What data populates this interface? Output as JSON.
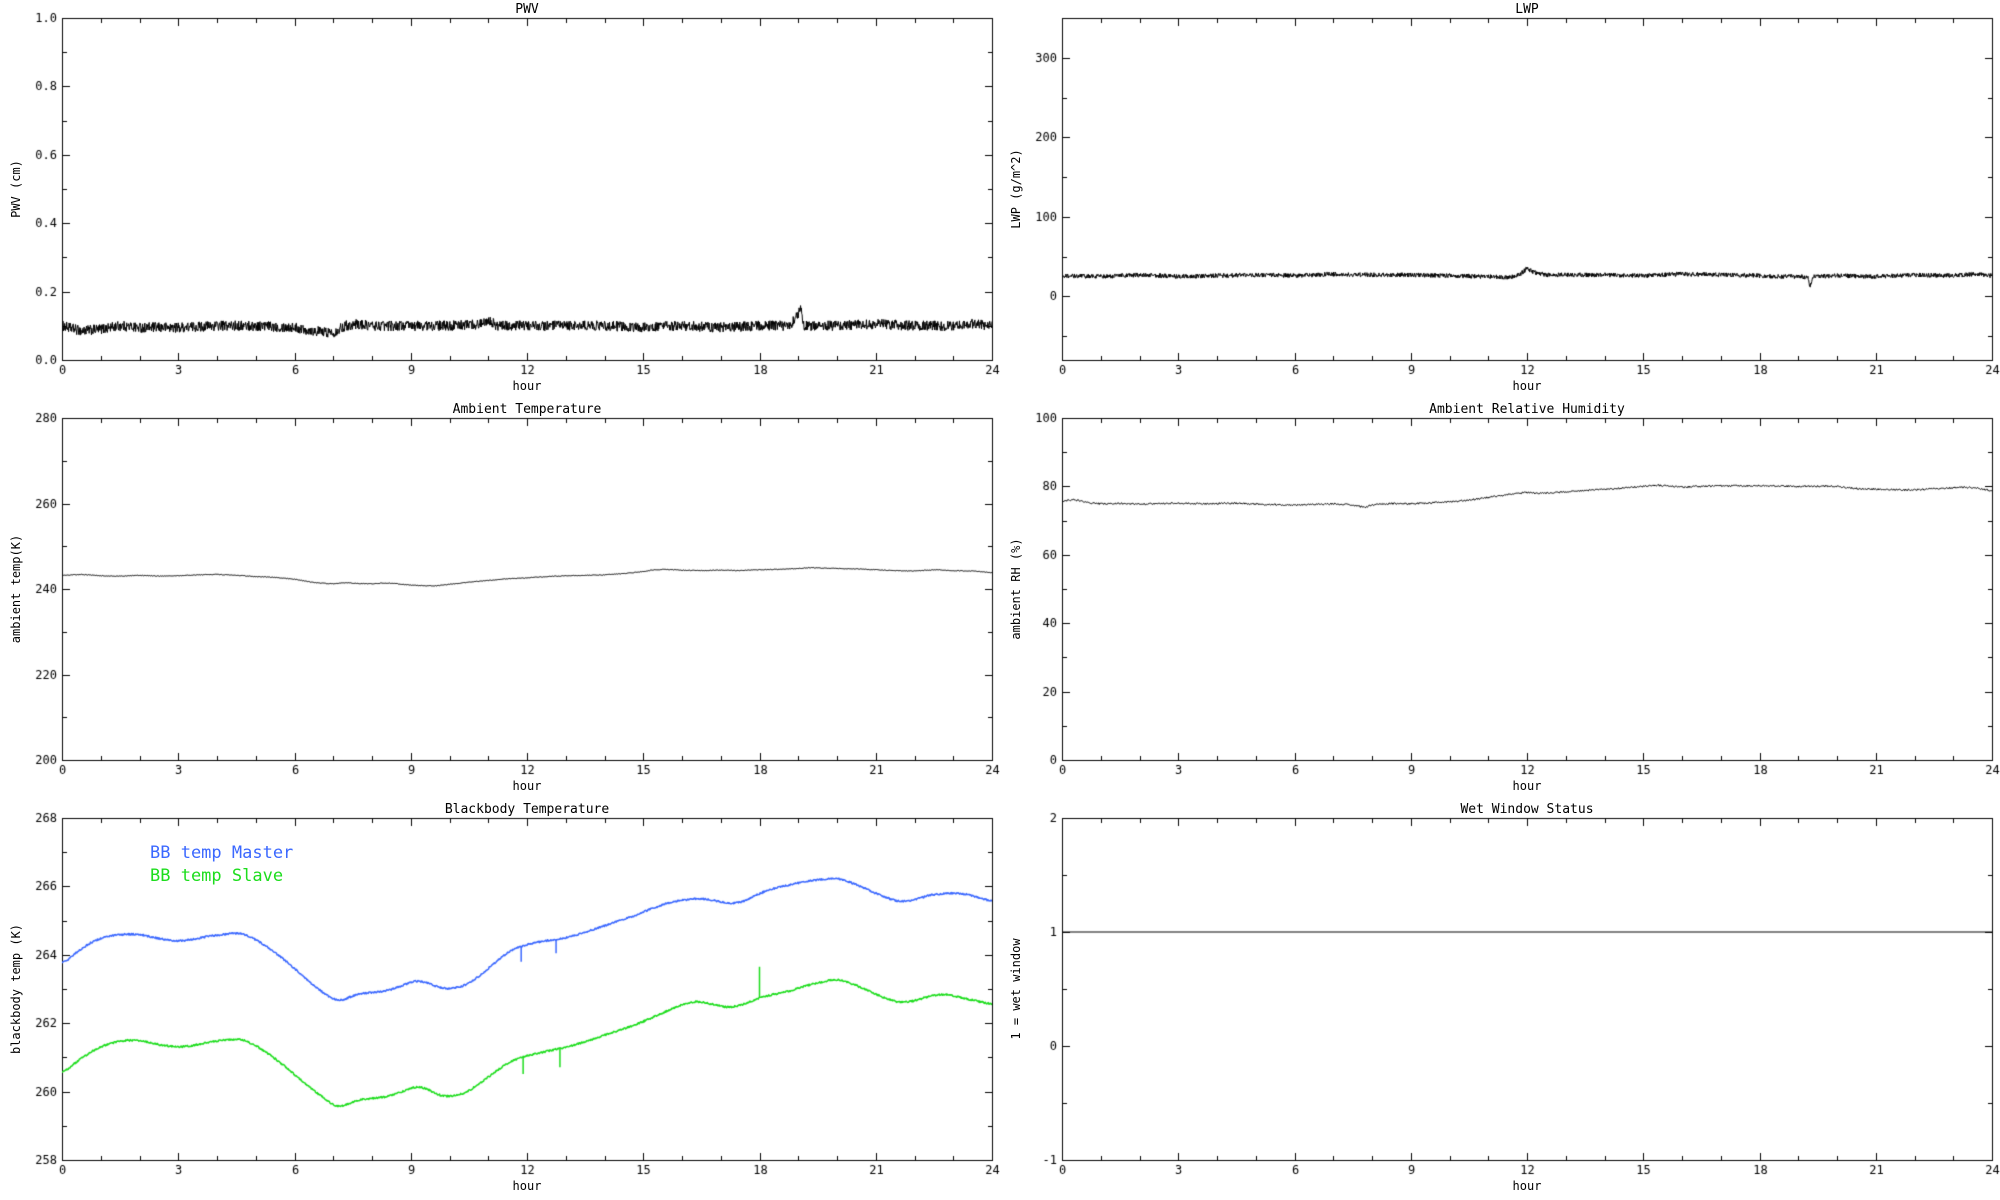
{
  "page": {
    "background": "#ffffff",
    "line_color": "#000000"
  },
  "chart_data": [
    {
      "type": "line",
      "title": "PWV",
      "xlabel": "hour",
      "ylabel": "PWV (cm)",
      "xlim": [
        0,
        24
      ],
      "ylim": [
        0,
        1.0
      ],
      "xticks": [
        0,
        3,
        6,
        9,
        12,
        15,
        18,
        21,
        24
      ],
      "xtick_labels": [
        "0",
        "3",
        "6",
        "9",
        "12",
        "15",
        "18",
        "21",
        "24"
      ],
      "xminor": 1,
      "yticks": [
        0.0,
        0.2,
        0.4,
        0.6,
        0.8,
        1.0
      ],
      "ytick_labels": [
        "0.0",
        "0.2",
        "0.4",
        "0.6",
        "0.8",
        "1.0"
      ],
      "yminor": 0.1,
      "grid": false,
      "series": [
        {
          "name": "PWV",
          "color": "#000000",
          "linewidth": 1,
          "samples": 2400,
          "noise": 0.015,
          "x": [
            0,
            0.5,
            1,
            1.5,
            2,
            3,
            4,
            5,
            6,
            6.5,
            7,
            7.3,
            7.6,
            8,
            9,
            10,
            10.8,
            11,
            11.2,
            12,
            13,
            14,
            15,
            16,
            17,
            18,
            18.8,
            19,
            19.05,
            19.15,
            20,
            21,
            22,
            23,
            23.5,
            24
          ],
          "y": [
            0.1,
            0.085,
            0.09,
            0.1,
            0.095,
            0.095,
            0.1,
            0.1,
            0.095,
            0.085,
            0.08,
            0.1,
            0.105,
            0.1,
            0.1,
            0.1,
            0.105,
            0.12,
            0.1,
            0.1,
            0.1,
            0.1,
            0.095,
            0.1,
            0.095,
            0.1,
            0.1,
            0.135,
            0.16,
            0.1,
            0.1,
            0.105,
            0.1,
            0.1,
            0.105,
            0.1
          ]
        }
      ]
    },
    {
      "type": "line",
      "title": "LWP",
      "xlabel": "hour",
      "ylabel": "LWP (g/m^2)",
      "xlim": [
        0,
        24
      ],
      "ylim": [
        -80,
        350
      ],
      "xticks": [
        0,
        3,
        6,
        9,
        12,
        15,
        18,
        21,
        24
      ],
      "xtick_labels": [
        "0",
        "3",
        "6",
        "9",
        "12",
        "15",
        "18",
        "21",
        "24"
      ],
      "xminor": 1,
      "yticks": [
        0,
        100,
        200,
        300
      ],
      "ytick_labels": [
        "0",
        "100",
        "200",
        "300"
      ],
      "yminor": 50,
      "grid": false,
      "series": [
        {
          "name": "LWP",
          "color": "#000000",
          "linewidth": 1,
          "samples": 2400,
          "noise": 2.8,
          "x": [
            0,
            1,
            2,
            3,
            4,
            5,
            6,
            7,
            8,
            9,
            10,
            11,
            11.5,
            11.8,
            12,
            12.2,
            12.5,
            13,
            14,
            15,
            16,
            17,
            18,
            18.5,
            19,
            19.25,
            19.3,
            19.4,
            20,
            21,
            22,
            23,
            23.5,
            24
          ],
          "y": [
            26,
            25,
            27,
            25,
            26,
            27,
            26,
            28,
            27,
            27,
            26,
            25,
            24,
            27,
            35,
            30,
            27,
            27,
            27,
            26,
            28,
            27,
            26,
            25,
            25,
            24,
            12,
            25,
            26,
            25,
            27,
            26,
            28,
            26
          ]
        }
      ]
    },
    {
      "type": "line",
      "title": "Ambient Temperature",
      "xlabel": "hour",
      "ylabel": "ambient temp(K)",
      "xlim": [
        0,
        24
      ],
      "ylim": [
        200,
        280
      ],
      "xticks": [
        0,
        3,
        6,
        9,
        12,
        15,
        18,
        21,
        24
      ],
      "xtick_labels": [
        "0",
        "3",
        "6",
        "9",
        "12",
        "15",
        "18",
        "21",
        "24"
      ],
      "xminor": 1,
      "yticks": [
        200,
        220,
        240,
        260,
        280
      ],
      "ytick_labels": [
        "200",
        "220",
        "240",
        "260",
        "280"
      ],
      "yminor": 10,
      "grid": false,
      "series": [
        {
          "name": "ambient temperature",
          "color": "#000000",
          "linewidth": 1,
          "samples": 1200,
          "noise": 0.08,
          "smooth": 9,
          "x": [
            0,
            0.5,
            1,
            1.5,
            2,
            2.5,
            3,
            3.5,
            4,
            4.5,
            5,
            5.5,
            6,
            6.3,
            6.6,
            7,
            7.3,
            7.6,
            8,
            8.3,
            8.6,
            9,
            9.3,
            9.6,
            10,
            10.5,
            11,
            11.5,
            12,
            12.5,
            13,
            13.5,
            14,
            14.5,
            15,
            15.3,
            15.6,
            16,
            16.5,
            17,
            17.5,
            18,
            18.5,
            19,
            19.3,
            19.6,
            20,
            20.5,
            21,
            21.5,
            22,
            22.3,
            22.6,
            23,
            23.5,
            24
          ],
          "y": [
            243.2,
            243.4,
            243.1,
            243.0,
            243.2,
            243.0,
            243.1,
            243.3,
            243.4,
            243.2,
            242.9,
            242.7,
            242.3,
            241.8,
            241.4,
            241.2,
            241.5,
            241.3,
            241.2,
            241.4,
            241.3,
            240.9,
            240.8,
            240.7,
            241.1,
            241.6,
            242.0,
            242.4,
            242.6,
            242.9,
            243.1,
            243.2,
            243.3,
            243.6,
            244.1,
            244.5,
            244.6,
            244.4,
            244.3,
            244.4,
            244.3,
            244.5,
            244.6,
            244.8,
            245.0,
            244.9,
            244.8,
            244.7,
            244.5,
            244.3,
            244.2,
            244.4,
            244.5,
            244.3,
            244.2,
            243.8
          ]
        }
      ]
    },
    {
      "type": "line",
      "title": "Ambient Relative Humidity",
      "xlabel": "hour",
      "ylabel": "ambient RH (%)",
      "xlim": [
        0,
        24
      ],
      "ylim": [
        0,
        100
      ],
      "xticks": [
        0,
        3,
        6,
        9,
        12,
        15,
        18,
        21,
        24
      ],
      "xtick_labels": [
        "0",
        "3",
        "6",
        "9",
        "12",
        "15",
        "18",
        "21",
        "24"
      ],
      "xminor": 1,
      "yticks": [
        0,
        20,
        40,
        60,
        80,
        100
      ],
      "ytick_labels": [
        "0",
        "20",
        "40",
        "60",
        "80",
        "100"
      ],
      "yminor": 10,
      "grid": false,
      "series": [
        {
          "name": "ambient relative humidity",
          "color": "#000000",
          "linewidth": 1,
          "samples": 1200,
          "noise": 0.25,
          "smooth": 9,
          "x": [
            0,
            0.3,
            0.6,
            1,
            1.5,
            2,
            2.5,
            3,
            3.5,
            4,
            4.5,
            5,
            5.5,
            6,
            6.5,
            7,
            7.5,
            7.8,
            8,
            8.5,
            9,
            9.5,
            10,
            10.5,
            11,
            11.5,
            12,
            12.3,
            12.6,
            13,
            13.5,
            14,
            14.5,
            15,
            15.3,
            15.6,
            16,
            16.5,
            17,
            17.5,
            18,
            18.5,
            19,
            19.5,
            20,
            20.3,
            20.6,
            21,
            21.5,
            22,
            22.5,
            23,
            23.3,
            23.6,
            24
          ],
          "y": [
            75.5,
            76.2,
            75.3,
            74.9,
            75.0,
            74.8,
            75.0,
            75.1,
            74.9,
            75.0,
            75.1,
            74.8,
            74.7,
            74.5,
            74.8,
            74.9,
            74.6,
            73.8,
            74.6,
            75.0,
            74.9,
            75.2,
            75.5,
            76.0,
            76.8,
            77.6,
            78.3,
            77.9,
            78.2,
            78.4,
            78.8,
            79.2,
            79.5,
            80.0,
            80.4,
            80.1,
            79.8,
            80.0,
            80.2,
            80.1,
            80.3,
            80.1,
            80.0,
            80.1,
            80.0,
            79.6,
            79.3,
            79.2,
            79.0,
            79.0,
            79.3,
            79.6,
            79.8,
            79.5,
            78.7
          ]
        }
      ]
    },
    {
      "type": "line",
      "title": "Blackbody Temperature",
      "xlabel": "hour",
      "ylabel": "blackbody temp (K)",
      "xlim": [
        0,
        24
      ],
      "ylim": [
        258,
        268
      ],
      "xticks": [
        0,
        3,
        6,
        9,
        12,
        15,
        18,
        21,
        24
      ],
      "xtick_labels": [
        "0",
        "3",
        "6",
        "9",
        "12",
        "15",
        "18",
        "21",
        "24"
      ],
      "xminor": 1,
      "yticks": [
        258,
        260,
        262,
        264,
        266,
        268
      ],
      "ytick_labels": [
        "258",
        "260",
        "262",
        "264",
        "266",
        "268"
      ],
      "yminor": 1,
      "grid": false,
      "legend_position": "top-left-inside",
      "series": [
        {
          "name": "BB temp Master",
          "color": "#3b68ff",
          "linewidth": 1.5,
          "samples": 1500,
          "noise": 0.025,
          "smooth": 21,
          "x": [
            0,
            0.4,
            0.8,
            1.2,
            1.6,
            2.0,
            2.6,
            3.0,
            3.4,
            3.8,
            4.2,
            4.6,
            5.0,
            5.4,
            5.8,
            6.2,
            6.6,
            7.0,
            7.2,
            7.6,
            8.0,
            8.4,
            8.8,
            9.1,
            9.4,
            9.7,
            10.0,
            10.4,
            10.8,
            11.2,
            11.6,
            12.0,
            12.4,
            12.8,
            13.2,
            13.6,
            14.0,
            14.4,
            14.8,
            15.2,
            15.6,
            16.0,
            16.4,
            16.8,
            17.2,
            17.6,
            18.0,
            18.4,
            18.8,
            19.2,
            19.6,
            20.0,
            20.4,
            20.8,
            21.2,
            21.6,
            22.0,
            22.4,
            22.8,
            23.2,
            23.6,
            24.0
          ],
          "y": [
            263.7,
            264.1,
            264.4,
            264.55,
            264.6,
            264.6,
            264.45,
            264.4,
            264.45,
            264.55,
            264.6,
            264.65,
            264.45,
            264.15,
            263.8,
            263.4,
            263.0,
            262.7,
            262.65,
            262.85,
            262.9,
            262.95,
            263.1,
            263.25,
            263.2,
            263.05,
            263.0,
            263.1,
            263.4,
            263.8,
            264.15,
            264.3,
            264.4,
            264.45,
            264.55,
            264.7,
            264.85,
            265.0,
            265.15,
            265.35,
            265.5,
            265.6,
            265.65,
            265.6,
            265.5,
            265.55,
            265.8,
            265.95,
            266.05,
            266.15,
            266.2,
            266.25,
            266.1,
            265.9,
            265.7,
            265.55,
            265.6,
            265.75,
            265.8,
            265.8,
            265.7,
            265.55
          ],
          "glitches": [
            {
              "x": 11.85,
              "dy": -0.45
            },
            {
              "x": 12.75,
              "dy": -0.4
            }
          ]
        },
        {
          "name": "BB temp Slave",
          "color": "#1ddd1d",
          "linewidth": 1.5,
          "samples": 1500,
          "noise": 0.025,
          "smooth": 21,
          "x": [
            0,
            0.4,
            0.8,
            1.2,
            1.6,
            2.0,
            2.6,
            3.0,
            3.4,
            3.8,
            4.2,
            4.6,
            5.0,
            5.4,
            5.8,
            6.2,
            6.6,
            7.0,
            7.2,
            7.6,
            8.0,
            8.4,
            8.8,
            9.1,
            9.4,
            9.7,
            10.0,
            10.4,
            10.8,
            11.2,
            11.6,
            12.0,
            12.4,
            12.8,
            13.2,
            13.6,
            14.0,
            14.4,
            14.8,
            15.2,
            15.6,
            16.0,
            16.4,
            16.8,
            17.2,
            17.6,
            18.0,
            18.4,
            18.8,
            19.2,
            19.6,
            20.0,
            20.4,
            20.8,
            21.2,
            21.6,
            22.0,
            22.4,
            22.8,
            23.2,
            23.6,
            24.0
          ],
          "y": [
            260.5,
            260.9,
            261.2,
            261.4,
            261.5,
            261.5,
            261.35,
            261.3,
            261.35,
            261.45,
            261.5,
            261.55,
            261.35,
            261.05,
            260.7,
            260.3,
            259.95,
            259.6,
            259.55,
            259.75,
            259.8,
            259.85,
            260.0,
            260.15,
            260.1,
            259.9,
            259.85,
            259.95,
            260.25,
            260.6,
            260.9,
            261.05,
            261.15,
            261.25,
            261.35,
            261.5,
            261.65,
            261.8,
            261.95,
            262.15,
            262.35,
            262.55,
            262.65,
            262.55,
            262.45,
            262.55,
            262.75,
            262.85,
            262.95,
            263.1,
            263.2,
            263.3,
            263.15,
            262.95,
            262.75,
            262.6,
            262.65,
            262.8,
            262.85,
            262.75,
            262.65,
            262.55
          ],
          "glitches": [
            {
              "x": 11.9,
              "dy": -0.5
            },
            {
              "x": 12.85,
              "dy": -0.55
            },
            {
              "x": 18.0,
              "dy": 0.9
            }
          ]
        }
      ]
    },
    {
      "type": "line",
      "title": "Wet Window Status",
      "xlabel": "hour",
      "ylabel": "1 = wet window",
      "xlim": [
        0,
        24
      ],
      "ylim": [
        -1,
        2
      ],
      "xticks": [
        0,
        3,
        6,
        9,
        12,
        15,
        18,
        21,
        24
      ],
      "xtick_labels": [
        "0",
        "3",
        "6",
        "9",
        "12",
        "15",
        "18",
        "21",
        "24"
      ],
      "xminor": 1,
      "yticks": [
        -1,
        0,
        1,
        2
      ],
      "ytick_labels": [
        "-1",
        "0",
        "1",
        "2"
      ],
      "yminor": 0.5,
      "grid": false,
      "series": [
        {
          "name": "wet window status",
          "color": "#000000",
          "linewidth": 1,
          "x": [
            0,
            24
          ],
          "y": [
            1,
            1
          ]
        }
      ]
    }
  ]
}
